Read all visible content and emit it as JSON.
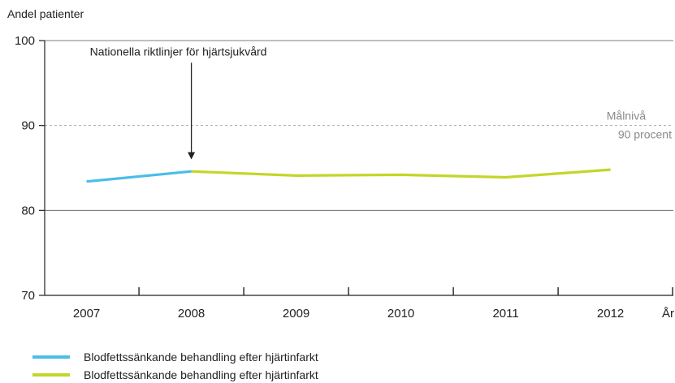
{
  "chart_data": {
    "type": "line",
    "ylabel": "Andel patienter",
    "xlabel": "År",
    "x": [
      2007,
      2008,
      2009,
      2010,
      2011,
      2012
    ],
    "xlim": [
      2006.6,
      2012.6
    ],
    "ylim": [
      70,
      100
    ],
    "yticks": [
      70,
      80,
      90,
      100
    ],
    "grid": true,
    "legend": "bottom-left",
    "series": [
      {
        "name": "Blodfettssänkande behandling efter hjärtinfarkt",
        "color": "#4bbde8",
        "points": [
          [
            2007,
            83.4
          ],
          [
            2008,
            84.6
          ]
        ]
      },
      {
        "name": "Blodfettssänkande behandling efter hjärtinfarkt",
        "color": "#c3d62a",
        "points": [
          [
            2008,
            84.6
          ],
          [
            2009,
            84.1
          ],
          [
            2010,
            84.2
          ],
          [
            2011,
            83.9
          ],
          [
            2012,
            84.8
          ]
        ]
      }
    ],
    "target": {
      "value": 90,
      "label_line1": "Målnivå",
      "label_line2": "90 procent"
    },
    "annotation": {
      "text": "Nationella riktlinjer för hjärtsjukvård",
      "x": 2008,
      "y_from": 97.2,
      "y_to": 86.0
    }
  }
}
